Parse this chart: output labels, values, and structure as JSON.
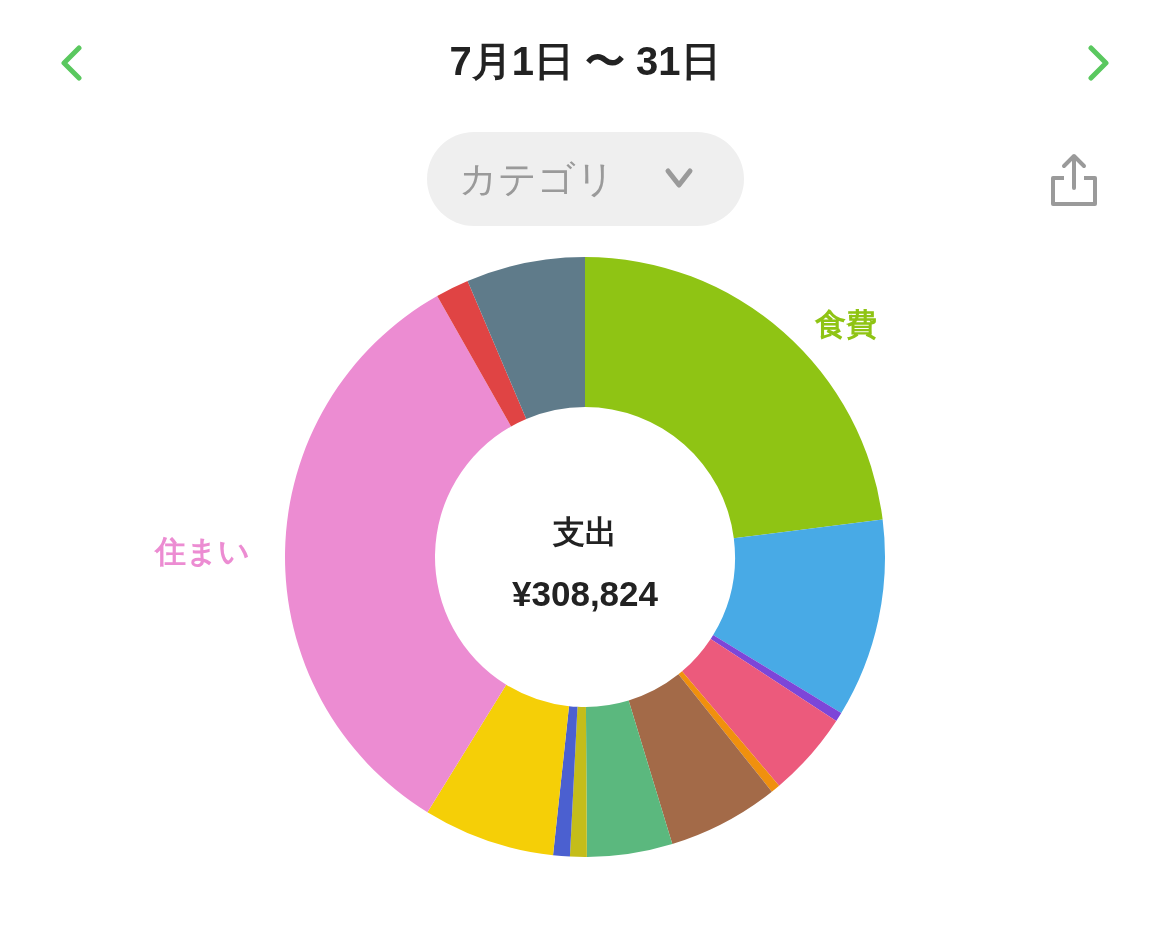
{
  "chart_data": {
    "type": "donut",
    "title": "7月1日 〜 31日",
    "subtitle": "カテゴリ",
    "annotations": [
      "支出",
      "¥308,824"
    ],
    "categories": [
      "食費",
      null,
      null,
      null,
      null,
      null,
      null,
      null,
      null,
      null,
      "住まい",
      null,
      null
    ],
    "values": [
      23.0,
      10.7,
      0.5,
      4.6,
      0.5,
      6.0,
      4.6,
      0.9,
      0.9,
      7.1,
      33.0,
      1.8,
      6.4
    ],
    "colors": [
      "#8fc414",
      "#48aae6",
      "#7d46d8",
      "#ec5a7c",
      "#f0900e",
      "#a36a48",
      "#5bb87e",
      "#c4bd1a",
      "#4b60d0",
      "#f5cf07",
      "#ec8cd2",
      "#e04444",
      "#5f7b8a"
    ]
  }
}
